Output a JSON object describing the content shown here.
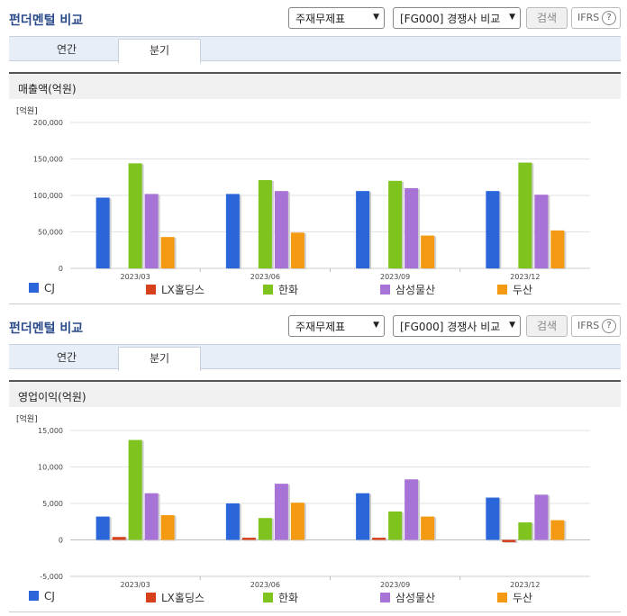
{
  "panels": [
    {
      "title": "펀더멘털 비교",
      "select1": "주재무제표",
      "select2": "[FG000] 경쟁사 비교",
      "search_label": "검색",
      "ifrs_label": "IFRS",
      "help_glyph": "?",
      "tabs": [
        {
          "label": "연간"
        },
        {
          "label": "분기"
        }
      ],
      "active_tab": 1,
      "section_title": "매출액(억원)",
      "unit_label": "[억원]"
    },
    {
      "title": "펀더멘털 비교",
      "select1": "주재무제표",
      "select2": "[FG000] 경쟁사 비교",
      "search_label": "검색",
      "ifrs_label": "IFRS",
      "help_glyph": "?",
      "tabs": [
        {
          "label": "연간"
        },
        {
          "label": "분기"
        }
      ],
      "active_tab": 1,
      "section_title": "영업이익(억원)",
      "unit_label": "[억원]"
    }
  ],
  "colors": {
    "CJ": "#2a66d9",
    "LX홀딩스": "#d6401a",
    "한화": "#7fc41e",
    "삼성물산": "#a873d6",
    "두산": "#f49a12"
  },
  "chart_data": [
    {
      "type": "bar",
      "title": "매출액(억원)",
      "ylabel": "[억원]",
      "categories": [
        "2023/03",
        "2023/06",
        "2023/09",
        "2023/12"
      ],
      "ylim": [
        0,
        200000
      ],
      "yticks": [
        0,
        50000,
        100000,
        150000,
        200000
      ],
      "ytick_labels": [
        "0",
        "50,000",
        "100,000",
        "150,000",
        "200,000"
      ],
      "grid": true,
      "legend": "bottom",
      "series": [
        {
          "name": "CJ",
          "values": [
            97000,
            102000,
            106000,
            106000
          ]
        },
        {
          "name": "LX홀딩스",
          "values": [
            0,
            0,
            0,
            0
          ]
        },
        {
          "name": "한화",
          "values": [
            144000,
            121000,
            120000,
            145000
          ]
        },
        {
          "name": "삼성물산",
          "values": [
            102000,
            106000,
            110000,
            101000
          ]
        },
        {
          "name": "두산",
          "values": [
            43000,
            49000,
            45000,
            52000
          ]
        }
      ]
    },
    {
      "type": "bar",
      "title": "영업이익(억원)",
      "ylabel": "[억원]",
      "categories": [
        "2023/03",
        "2023/06",
        "2023/09",
        "2023/12"
      ],
      "ylim": [
        -5000,
        15000
      ],
      "yticks": [
        -5000,
        0,
        5000,
        10000,
        15000
      ],
      "ytick_labels": [
        "-5,000",
        "0",
        "5,000",
        "10,000",
        "15,000"
      ],
      "grid": true,
      "legend": "bottom",
      "series": [
        {
          "name": "CJ",
          "values": [
            3200,
            5000,
            6400,
            5800
          ]
        },
        {
          "name": "LX홀딩스",
          "values": [
            400,
            300,
            300,
            -300
          ]
        },
        {
          "name": "한화",
          "values": [
            13700,
            3000,
            3900,
            2400
          ]
        },
        {
          "name": "삼성물산",
          "values": [
            6400,
            7700,
            8300,
            6200
          ]
        },
        {
          "name": "두산",
          "values": [
            3400,
            5100,
            3200,
            2700
          ]
        }
      ]
    }
  ]
}
